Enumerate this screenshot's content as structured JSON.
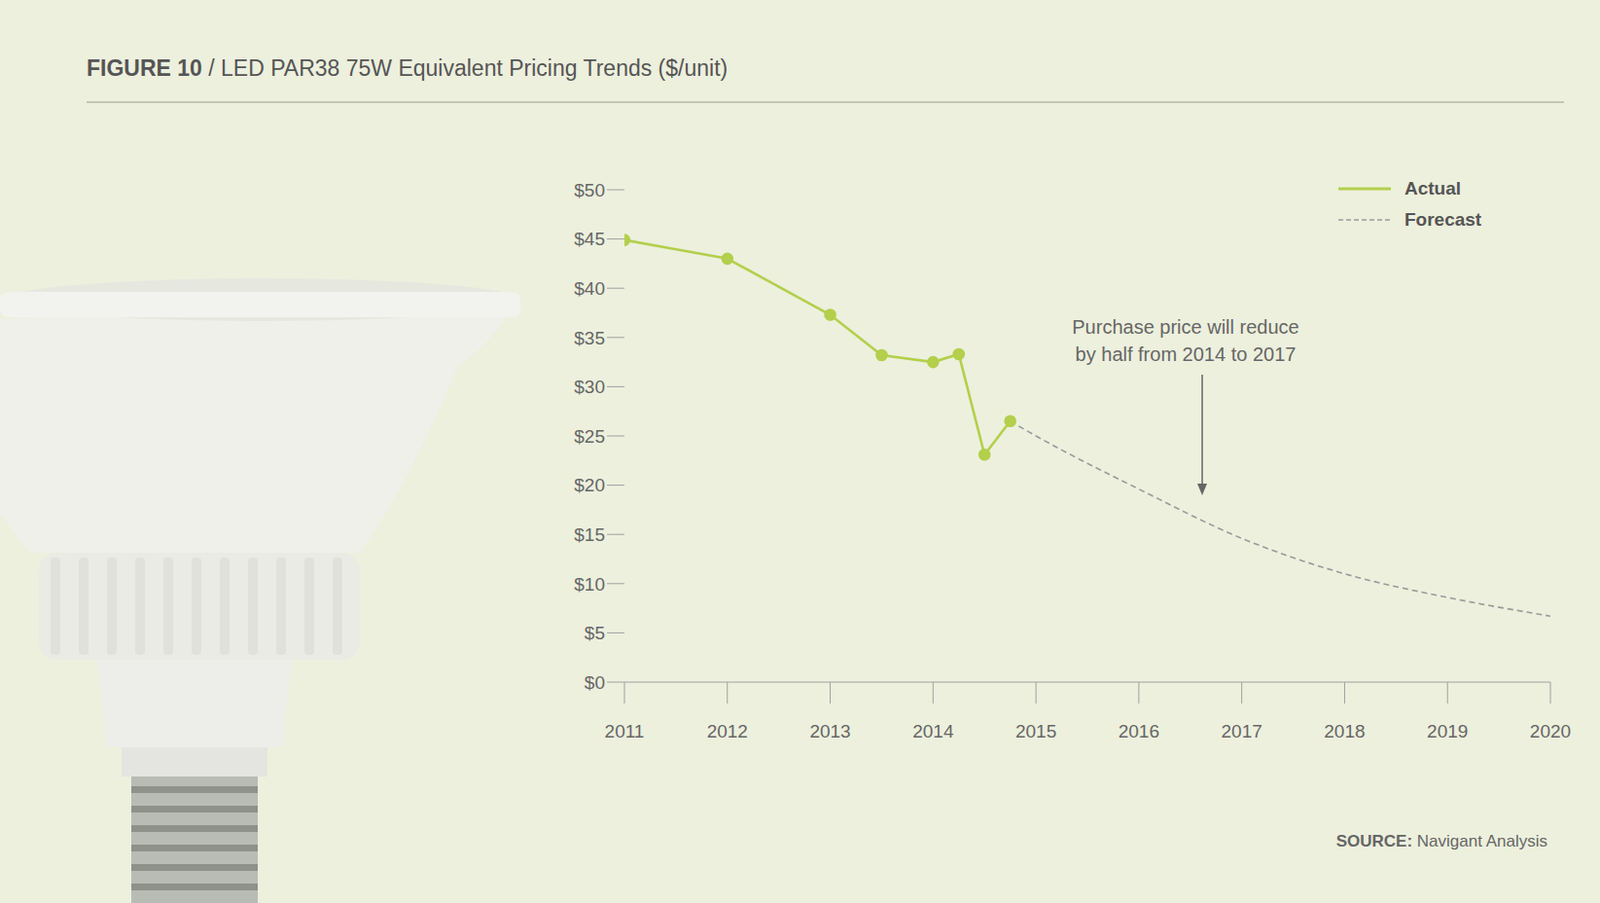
{
  "chart_data": {
    "type": "line",
    "title": "FIGURE 10 / LED PAR38 75W Equivalent Pricing Trends ($/unit)",
    "annotation": [
      "Purchase price will reduce",
      "by half from 2014 to 2017"
    ],
    "source": "SOURCE: Navigant Analysis",
    "xlim": [
      2011,
      2020
    ],
    "xticks": [
      2011,
      2012,
      2013,
      2014,
      2015,
      2016,
      2017,
      2018,
      2019,
      2020
    ],
    "ylim": [
      0,
      50
    ],
    "yticks": [
      {
        "value": 0,
        "label": "$0"
      },
      {
        "value": 5,
        "label": "$5"
      },
      {
        "value": 10,
        "label": "$10"
      },
      {
        "value": 15,
        "label": "$15"
      },
      {
        "value": 20,
        "label": "$20"
      },
      {
        "value": 25,
        "label": "$25"
      },
      {
        "value": 30,
        "label": "$30"
      },
      {
        "value": 35,
        "label": "$35"
      },
      {
        "value": 40,
        "label": "$40"
      },
      {
        "value": 45,
        "label": "$45"
      },
      {
        "value": 50,
        "label": "$50"
      }
    ],
    "grid": false,
    "legend": "upper right",
    "series": [
      {
        "name": "Actual",
        "color": "#b3cf4c",
        "marker": "o",
        "line_style": "solid",
        "x": [
          2011,
          2012,
          2013,
          2013.5,
          2014,
          2014.25,
          2014.5,
          2014.75
        ],
        "values": [
          44.9,
          43.0,
          37.3,
          33.2,
          32.5,
          33.3,
          23.1,
          26.5
        ]
      },
      {
        "name": "Forecast",
        "color": "#9a9a9a",
        "marker": "none",
        "line_style": "dashed",
        "x": [
          2014.75,
          2015,
          2016,
          2017,
          2018,
          2019,
          2020
        ],
        "values": [
          26.5,
          25.0,
          19.6,
          14.6,
          11.0,
          8.6,
          6.7
        ]
      }
    ]
  }
}
